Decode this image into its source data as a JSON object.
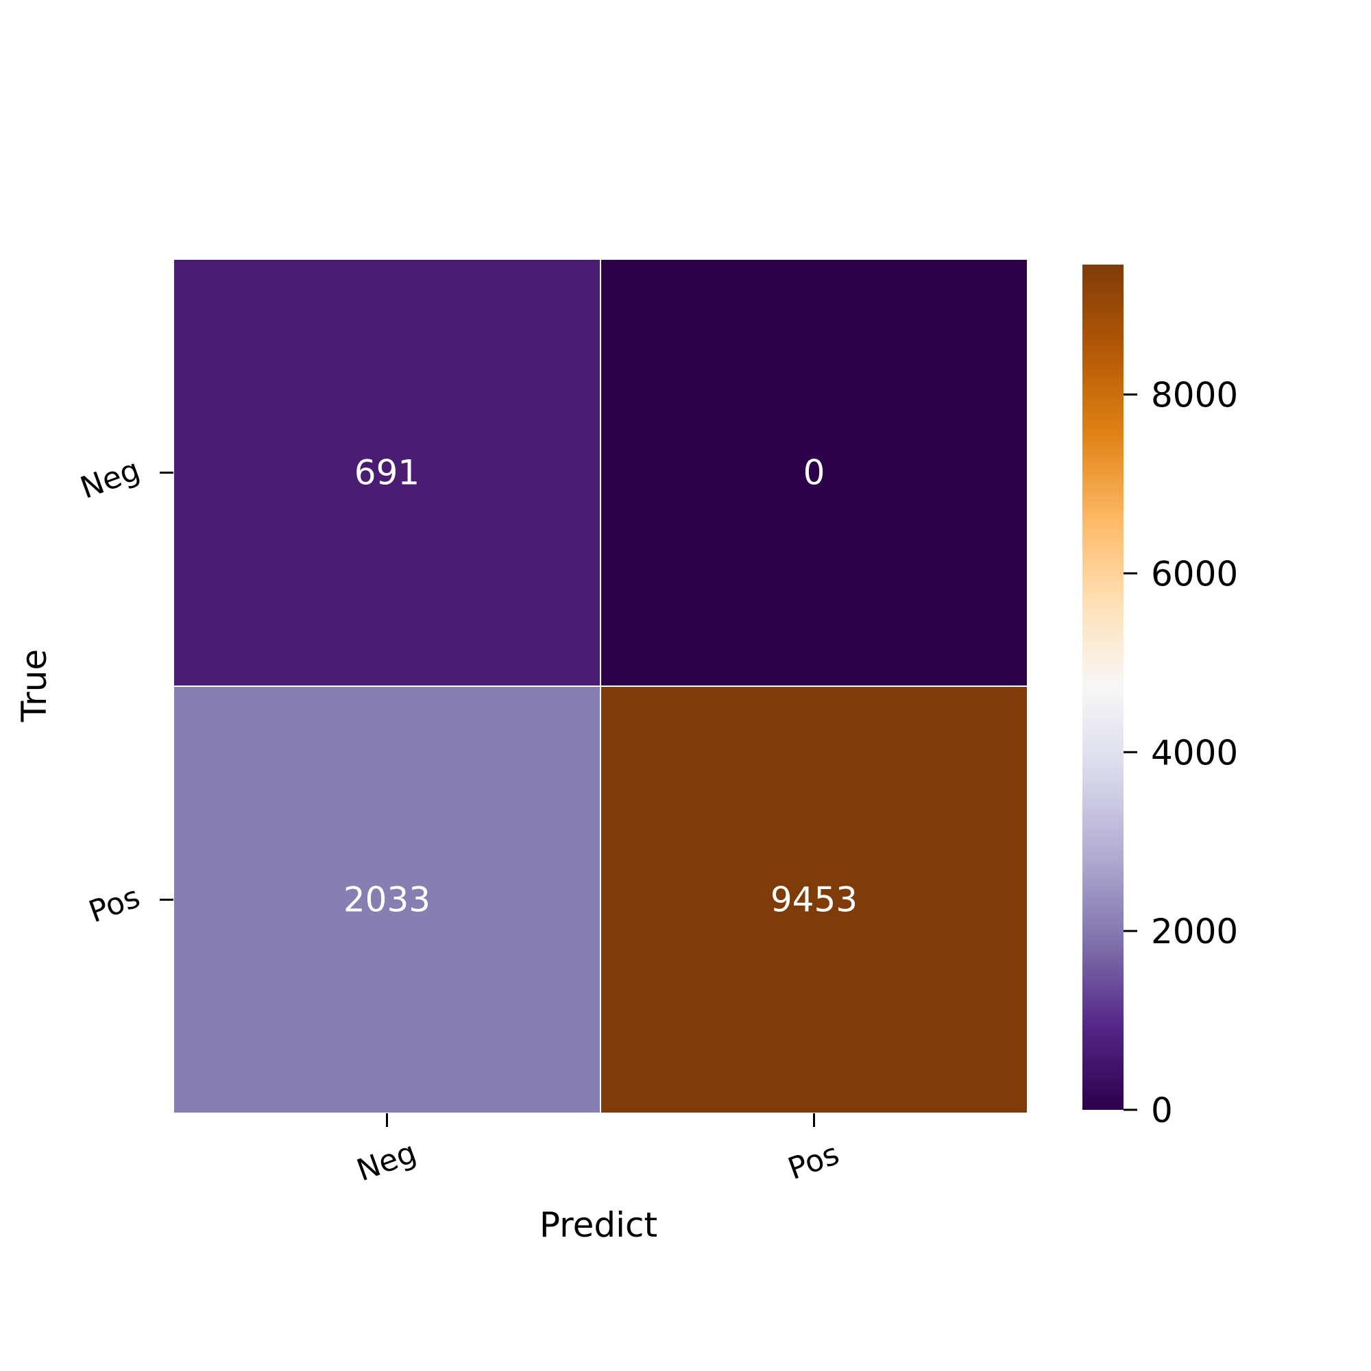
{
  "chart_data": {
    "type": "heatmap",
    "title": "",
    "xlabel": "Predict",
    "ylabel": "True",
    "x_categories": [
      "Neg",
      "Pos"
    ],
    "y_categories": [
      "Neg",
      "Pos"
    ],
    "values": [
      [
        691,
        0
      ],
      [
        2033,
        9453
      ]
    ],
    "cell_colors": [
      [
        "#4a1d72",
        "#2d004b"
      ],
      [
        "#897eb1",
        "#7f3b08"
      ]
    ],
    "annotation_color": "#ffffff",
    "colorbar": {
      "range": [
        0,
        9453
      ],
      "ticks": [
        0,
        2000,
        4000,
        6000,
        8000
      ],
      "tick_labels": [
        "0",
        "2000",
        "4000",
        "6000",
        "8000"
      ],
      "colormap": "PuOr_r",
      "stops": [
        "#2d004b",
        "#542788",
        "#8073ac",
        "#b2abd2",
        "#d8daeb",
        "#f7f7f7",
        "#fee0b6",
        "#fdb863",
        "#e08214",
        "#b35806",
        "#7f3b08"
      ]
    },
    "grid": false,
    "legend": "colorbar-right"
  }
}
